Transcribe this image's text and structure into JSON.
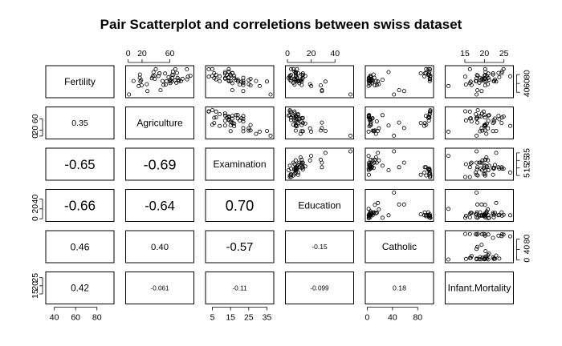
{
  "chart_data": {
    "type": "scatter",
    "subtype": "pairs-matrix",
    "title": "Pair Scatterplot and correletions between swiss dataset",
    "variables": [
      "Fertility",
      "Agriculture",
      "Examination",
      "Education",
      "Catholic",
      "Infant.Mortality"
    ],
    "ranges": [
      [
        35,
        93
      ],
      [
        1,
        90
      ],
      [
        3,
        37
      ],
      [
        1,
        53
      ],
      [
        2,
        100
      ],
      [
        10.8,
        26.6
      ]
    ],
    "ticks": [
      [
        40,
        60,
        80
      ],
      [
        0,
        20,
        60
      ],
      [
        5,
        15,
        25,
        35
      ],
      [
        0,
        20,
        40
      ],
      [
        0,
        40,
        80
      ],
      [
        15,
        20,
        25
      ]
    ],
    "correlations": [
      {
        "row": 1,
        "col": 0,
        "value": "0.35"
      },
      {
        "row": 2,
        "col": 0,
        "value": "-0.65"
      },
      {
        "row": 2,
        "col": 1,
        "value": "-0.69"
      },
      {
        "row": 3,
        "col": 0,
        "value": "-0.66"
      },
      {
        "row": 3,
        "col": 1,
        "value": "-0.64"
      },
      {
        "row": 3,
        "col": 2,
        "value": "0.70"
      },
      {
        "row": 4,
        "col": 0,
        "value": "0.46"
      },
      {
        "row": 4,
        "col": 1,
        "value": "0.40"
      },
      {
        "row": 4,
        "col": 2,
        "value": "-0.57"
      },
      {
        "row": 4,
        "col": 3,
        "value": "-0.15"
      },
      {
        "row": 5,
        "col": 0,
        "value": "0.42"
      },
      {
        "row": 5,
        "col": 1,
        "value": "-0.061"
      },
      {
        "row": 5,
        "col": 2,
        "value": "-0.11"
      },
      {
        "row": 5,
        "col": 3,
        "value": "-0.099"
      },
      {
        "row": 5,
        "col": 4,
        "value": "0.18"
      }
    ],
    "data": [
      [
        80.2,
        17.0,
        15,
        12,
        9.96,
        22.2
      ],
      [
        83.1,
        45.1,
        6,
        9,
        84.84,
        22.2
      ],
      [
        92.5,
        39.7,
        5,
        5,
        93.4,
        20.2
      ],
      [
        85.8,
        36.5,
        12,
        7,
        33.77,
        20.3
      ],
      [
        76.9,
        43.5,
        17,
        15,
        5.16,
        20.6
      ],
      [
        76.1,
        35.3,
        9,
        7,
        90.57,
        26.6
      ],
      [
        83.8,
        70.2,
        16,
        7,
        92.85,
        23.6
      ],
      [
        92.4,
        67.8,
        14,
        8,
        97.16,
        24.9
      ],
      [
        82.4,
        53.3,
        12,
        7,
        97.67,
        21.0
      ],
      [
        82.9,
        45.2,
        16,
        13,
        91.38,
        24.4
      ],
      [
        87.1,
        64.5,
        14,
        6,
        98.61,
        24.5
      ],
      [
        64.1,
        62.0,
        21,
        12,
        8.52,
        16.5
      ],
      [
        66.9,
        67.5,
        14,
        7,
        2.27,
        19.1
      ],
      [
        68.9,
        60.7,
        19,
        12,
        4.43,
        22.7
      ],
      [
        61.7,
        69.3,
        22,
        5,
        2.82,
        18.7
      ],
      [
        68.3,
        72.6,
        18,
        2,
        24.2,
        21.2
      ],
      [
        71.7,
        34.0,
        17,
        8,
        3.3,
        20.0
      ],
      [
        55.7,
        19.4,
        26,
        28,
        12.11,
        20.2
      ],
      [
        54.3,
        15.2,
        31,
        20,
        2.15,
        10.8
      ],
      [
        65.1,
        73.0,
        19,
        9,
        2.84,
        20.0
      ],
      [
        65.5,
        59.8,
        22,
        10,
        5.23,
        18.0
      ],
      [
        65.0,
        55.1,
        14,
        3,
        4.52,
        22.4
      ],
      [
        56.6,
        50.9,
        22,
        12,
        15.14,
        16.7
      ],
      [
        57.4,
        54.1,
        20,
        6,
        4.2,
        15.3
      ],
      [
        72.5,
        71.2,
        12,
        1,
        2.4,
        21.0
      ],
      [
        74.2,
        58.1,
        14,
        8,
        5.23,
        23.8
      ],
      [
        72.0,
        63.5,
        6,
        3,
        2.56,
        18.0
      ],
      [
        60.5,
        60.8,
        16,
        10,
        7.72,
        16.3
      ],
      [
        58.3,
        26.8,
        25,
        19,
        18.46,
        20.9
      ],
      [
        65.4,
        49.5,
        15,
        8,
        6.1,
        22.5
      ],
      [
        75.5,
        85.9,
        3,
        2,
        99.71,
        15.1
      ],
      [
        69.3,
        84.9,
        7,
        6,
        99.68,
        19.8
      ],
      [
        77.3,
        89.7,
        5,
        2,
        100.0,
        18.3
      ],
      [
        70.5,
        78.2,
        12,
        6,
        98.96,
        19.4
      ],
      [
        79.4,
        64.9,
        7,
        3,
        98.22,
        20.2
      ],
      [
        65.0,
        75.9,
        9,
        9,
        99.06,
        17.8
      ],
      [
        92.2,
        84.6,
        3,
        3,
        99.46,
        16.3
      ],
      [
        79.3,
        63.1,
        13,
        13,
        96.83,
        18.1
      ],
      [
        70.4,
        38.4,
        26,
        12,
        5.62,
        20.3
      ],
      [
        65.7,
        7.7,
        29,
        11,
        13.79,
        20.5
      ],
      [
        72.7,
        16.7,
        22,
        13,
        11.22,
        18.9
      ],
      [
        64.4,
        17.6,
        35,
        32,
        16.92,
        23.0
      ],
      [
        77.6,
        37.6,
        15,
        7,
        4.97,
        20.0
      ],
      [
        67.6,
        18.7,
        25,
        7,
        8.65,
        19.5
      ],
      [
        35.0,
        1.2,
        37,
        53,
        42.34,
        18.0
      ],
      [
        44.7,
        46.6,
        16,
        29,
        50.43,
        18.2
      ],
      [
        42.8,
        27.7,
        22,
        29,
        58.33,
        19.3
      ]
    ]
  }
}
